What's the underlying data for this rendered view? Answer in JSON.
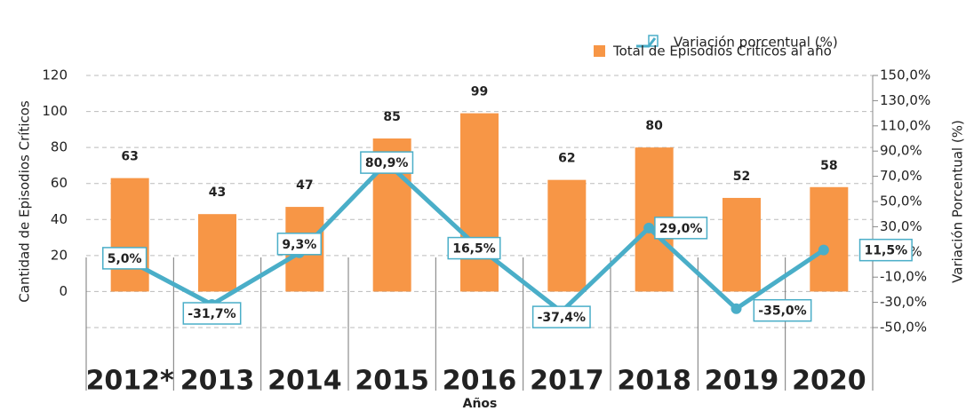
{
  "chart_data": {
    "type": "bar",
    "categories": [
      "2012*",
      "2013",
      "2014",
      "2015",
      "2016",
      "2017",
      "2018",
      "2019",
      "2020"
    ],
    "series": [
      {
        "name": "Total de Episodios Críticos al año",
        "type": "bar",
        "color": "#f79646",
        "values": [
          63,
          43,
          47,
          85,
          99,
          62,
          80,
          52,
          58
        ]
      },
      {
        "name": "Variación porcentual (%)",
        "type": "line",
        "axis": "y2",
        "color": "#4aaec8",
        "values": [
          5.0,
          -31.7,
          9.3,
          80.9,
          16.5,
          -37.4,
          29.0,
          -35.0,
          11.5
        ],
        "value_labels": [
          "5,0%",
          "-31,7%",
          "9,3%",
          "80,9%",
          "16,5%",
          "-37,4%",
          "29,0%",
          "-35,0%",
          "11,5%"
        ]
      }
    ],
    "ylabel": "Cantidad de Episodios Críticos",
    "y2label": "Variación Porcentual (%)",
    "xlabel": "Años",
    "ylim": [
      -20,
      120
    ],
    "yticks": [
      0,
      20,
      40,
      60,
      80,
      100,
      120
    ],
    "y2lim": [
      -50,
      150
    ],
    "y2ticks": [
      {
        "value": 150,
        "label": "150,0%"
      },
      {
        "value": 130,
        "label": "130,0%"
      },
      {
        "value": 110,
        "label": "110,0%"
      },
      {
        "value": 90,
        "label": "90,0%"
      },
      {
        "value": 70,
        "label": "70,0%"
      },
      {
        "value": 50,
        "label": "50,0%"
      },
      {
        "value": 30,
        "label": "30,0%"
      },
      {
        "value": 10,
        "label": "10,0%"
      },
      {
        "value": -10,
        "label": "-10,0%"
      },
      {
        "value": -30,
        "label": "-30,0%"
      },
      {
        "value": -50,
        "label": "-50,0%"
      }
    ],
    "negative_color": "#e3202a",
    "grid": true
  }
}
